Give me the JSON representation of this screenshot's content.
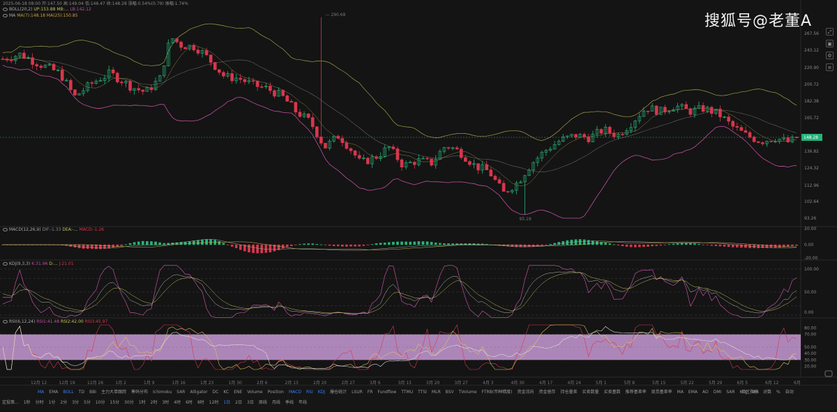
{
  "header": {
    "line1": "2025-06-18 08:00  开:147.50  高:149.04  低:146.47  收:148.28  涨幅:0.54%(0.79)  振幅:1.74%",
    "boll_label": "BOLL(20,2)",
    "boll_up": "UP:153.88",
    "boll_mb": "MB:...",
    "boll_lb": "LB:142.12",
    "ma_label": "MA",
    "ma_values": "MA(7):148.18  MA(25):150.85"
  },
  "watermark": "搜狐号@老董A",
  "price_axis": [
    "267.56",
    "243.12",
    "220.90",
    "200.72",
    "182.38",
    "165.72",
    "148.28",
    "136.82",
    "124.32",
    "112.96",
    "102.64",
    "93.26"
  ],
  "price_current": "148.28",
  "chart_annotations": {
    "high": "290.68",
    "low": "95.19"
  },
  "macd": {
    "label": "MACD(12,26,9)",
    "dif": "DIF:-1.33",
    "dea": "DEA:-...",
    "macd": "MACD:-1.26",
    "axis": [
      "20.00",
      "0.00",
      "-20.00"
    ]
  },
  "kdj": {
    "label": "KDJ(9,3,3)",
    "k": "K:31.96",
    "d": "D:...",
    "j": "J:21.01",
    "axis": [
      "100.00",
      "50.00",
      "0.00"
    ]
  },
  "rsi": {
    "label": "RSI(6,12,24)",
    "r1": "RSI1:41.48",
    "r2": "RSI2:42.00",
    "r3": "RSI3:45.97",
    "axis": [
      "80.00",
      "70.00",
      "50.00",
      "40.00",
      "30.00",
      "20.00"
    ]
  },
  "dates": [
    "12月 12",
    "12月 19",
    "12月 26",
    "1月 2",
    "1月 9",
    "1月 16",
    "1月 23",
    "1月 30",
    "2月 6",
    "2月 13",
    "2月 20",
    "2月 27",
    "3月 6",
    "3月 13",
    "3月 20",
    "3月 27",
    "4月 3",
    "4月 30",
    "4月 17",
    "4月 24",
    "5月 1",
    "5月 8",
    "5月 15",
    "5月 22",
    "5月 29",
    "6月 5",
    "6月 12"
  ],
  "date_last": "6月 19 周",
  "indicator_tabs": [
    "MA",
    "EMA",
    "BOLL",
    "TD",
    "BBI",
    "主力大单跟踪",
    "筹码分布",
    "Ichimoku",
    "SAR",
    "Alligator",
    "DC",
    "KC",
    "ENE",
    "Volume",
    "Position",
    "MACD",
    "RSI",
    "KDJ",
    "爆仓统计",
    "LSUR",
    "FR",
    "Fundflow",
    "TTMU",
    "TTSI",
    "MLR",
    "BSV",
    "TVolume",
    "FTRB(币种精度)",
    "资金流向",
    "资金留存",
    "持仓量差",
    "买卖数量",
    "买卖基数",
    "推荐基差率",
    "现货基差率",
    "MA",
    "EMA",
    "AO",
    "DMI",
    "SAR",
    "KDJ",
    "WR"
  ],
  "indicator_tabs_right": [
    "社区指标",
    "对数",
    "%",
    "自动"
  ],
  "interval_tabs": [
    "定投策...",
    "1秒",
    "分时",
    "1分",
    "2分",
    "3分",
    "5分",
    "10分",
    "15分",
    "30分",
    "1时",
    "2时",
    "3时",
    "4时",
    "6时",
    "8时",
    "12时",
    "1日",
    "2日",
    "3日",
    "周线",
    "月线",
    "季线",
    "年线"
  ],
  "active_interval": "1日",
  "colors": {
    "up": "#26b37a",
    "down": "#d7374c",
    "boll_band": "#c3c35a",
    "boll_lower": "#c050a0",
    "mid": "#888888",
    "rsi_fill": "#c89ad6"
  }
}
